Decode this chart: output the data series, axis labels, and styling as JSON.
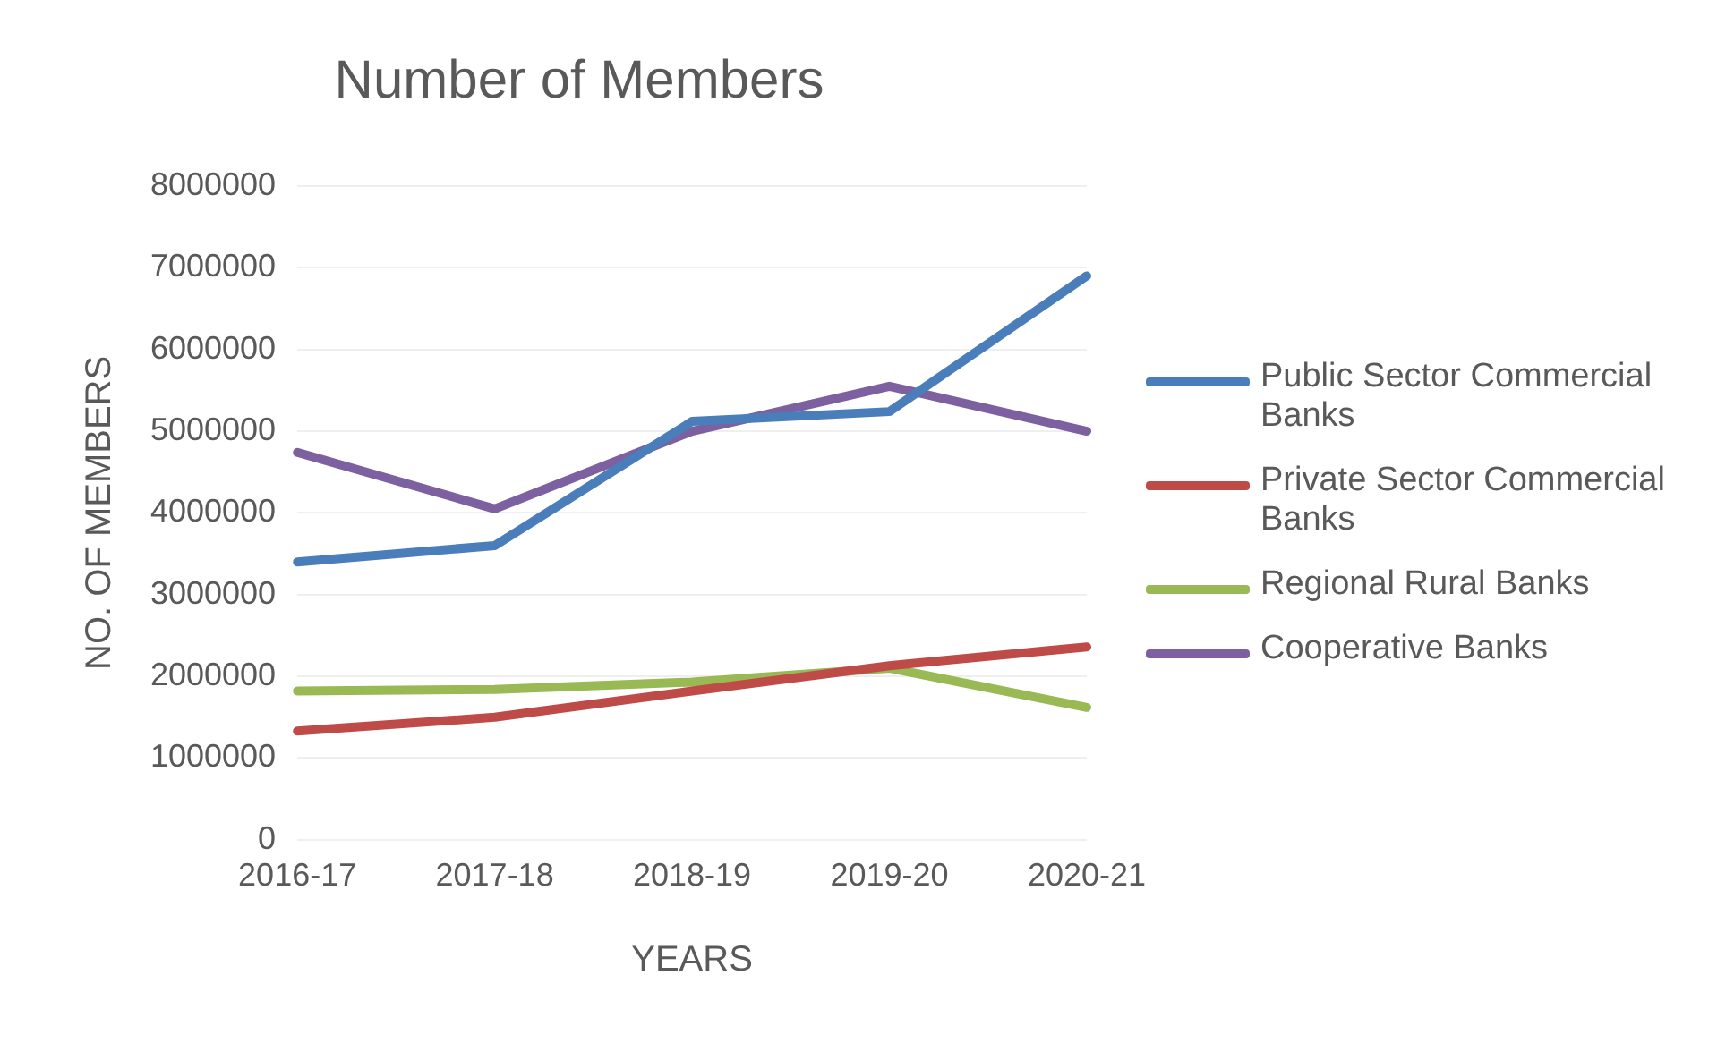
{
  "chart_data": {
    "type": "line",
    "title": "Number of Members",
    "xlabel": "YEARS",
    "ylabel": "NO. OF MEMBERS",
    "categories": [
      "2016-17",
      "2017-18",
      "2018-19",
      "2019-20",
      "2020-21"
    ],
    "series": [
      {
        "name": "Public Sector Commercial Banks",
        "color": "#4a7ebb",
        "values": [
          3400000,
          3600000,
          5120000,
          5240000,
          6900000
        ]
      },
      {
        "name": "Private Sector Commercial Banks",
        "color": "#be4b48",
        "values": [
          1330000,
          1500000,
          1820000,
          2130000,
          2360000
        ]
      },
      {
        "name": "Regional Rural Banks",
        "color": "#98b954",
        "values": [
          1820000,
          1840000,
          1930000,
          2100000,
          1620000
        ]
      },
      {
        "name": "Cooperative Banks",
        "color": "#7d60a0",
        "values": [
          4740000,
          4050000,
          5000000,
          5550000,
          5000000
        ]
      }
    ],
    "ylim": [
      0,
      8000000
    ],
    "yticks": [
      0,
      1000000,
      2000000,
      3000000,
      4000000,
      5000000,
      6000000,
      7000000,
      8000000
    ],
    "grid": "y",
    "legend": "right",
    "marker": "none",
    "line_style": "solid"
  }
}
